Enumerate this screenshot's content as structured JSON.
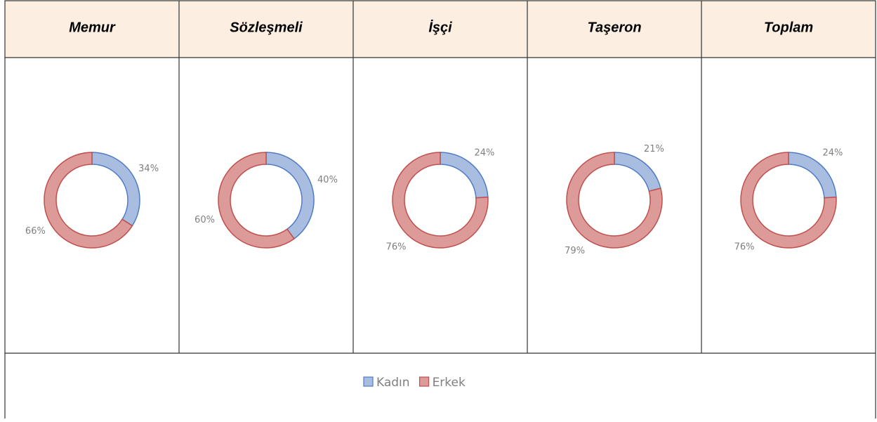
{
  "chart_data": [
    {
      "type": "donut",
      "title": "Memur",
      "values": [
        34,
        66
      ],
      "value_labels": [
        "34%",
        "66%"
      ]
    },
    {
      "type": "donut",
      "title": "Sözleşmeli",
      "values": [
        40,
        60
      ],
      "value_labels": [
        "40%",
        "60%"
      ]
    },
    {
      "type": "donut",
      "title": "İşçi",
      "values": [
        24,
        76
      ],
      "value_labels": [
        "24%",
        "76%"
      ]
    },
    {
      "type": "donut",
      "title": "Taşeron",
      "values": [
        21,
        79
      ],
      "value_labels": [
        "21%",
        "79%"
      ]
    },
    {
      "type": "donut",
      "title": "Toplam",
      "values": [
        24,
        76
      ],
      "value_labels": [
        "24%",
        "76%"
      ]
    }
  ],
  "legend": [
    {
      "name": "Kadın",
      "color": "#a9bde0",
      "stroke": "#4f7cc4"
    },
    {
      "name": "Erkek",
      "color": "#dc9a99",
      "stroke": "#c0504d"
    }
  ]
}
